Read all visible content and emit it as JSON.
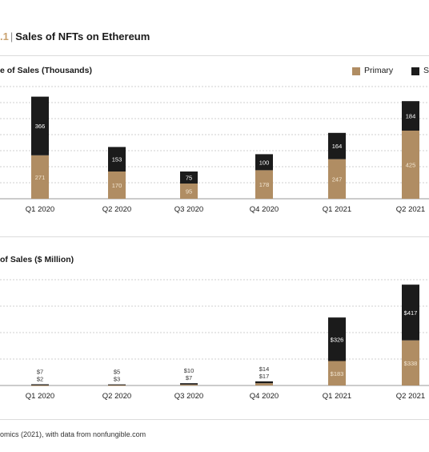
{
  "figure": {
    "number": ".1",
    "title": "Sales of NFTs on Ethereum",
    "source": "omics (2021), with data from nonfungible.com"
  },
  "legend": {
    "primary_label": "Primary",
    "secondary_label": "Se"
  },
  "colors": {
    "primary": "#b08d63",
    "secondary": "#1b1b1b",
    "grid": "#cfcfcf"
  },
  "chart_data": [
    {
      "type": "bar",
      "stacked": true,
      "title": "e of Sales (Thousands)",
      "categories": [
        "Q1 2020",
        "Q2 2020",
        "Q3 2020",
        "Q4 2020",
        "Q1 2021",
        "Q2 2021"
      ],
      "series": [
        {
          "name": "Primary",
          "values": [
            271,
            170,
            95,
            178,
            247,
            425
          ],
          "labels": [
            "271",
            "170",
            "95",
            "178",
            "247",
            "425"
          ]
        },
        {
          "name": "Se",
          "values": [
            366,
            153,
            75,
            100,
            164,
            184
          ],
          "labels": [
            "366",
            "153",
            "75",
            "100",
            "164",
            "184"
          ]
        }
      ],
      "ylim": [
        0,
        700
      ],
      "grid": true,
      "legend_position": "top-right"
    },
    {
      "type": "bar",
      "stacked": true,
      "title": "of Sales ($ Million)",
      "categories": [
        "Q1 2020",
        "Q2 2020",
        "Q3 2020",
        "Q4 2020",
        "Q1 2021",
        "Q2 2021"
      ],
      "series": [
        {
          "name": "Primary",
          "values": [
            2,
            3,
            7,
            17,
            183,
            338
          ],
          "labels": [
            "$2",
            "$3",
            "$7",
            "$17",
            "$183",
            "$338"
          ]
        },
        {
          "name": "Se",
          "values": [
            7,
            5,
            10,
            14,
            326,
            417
          ],
          "labels": [
            "$7",
            "$5",
            "$10",
            "$14",
            "$326",
            "$417"
          ]
        }
      ],
      "ylim": [
        0,
        900
      ],
      "grid": true
    }
  ]
}
